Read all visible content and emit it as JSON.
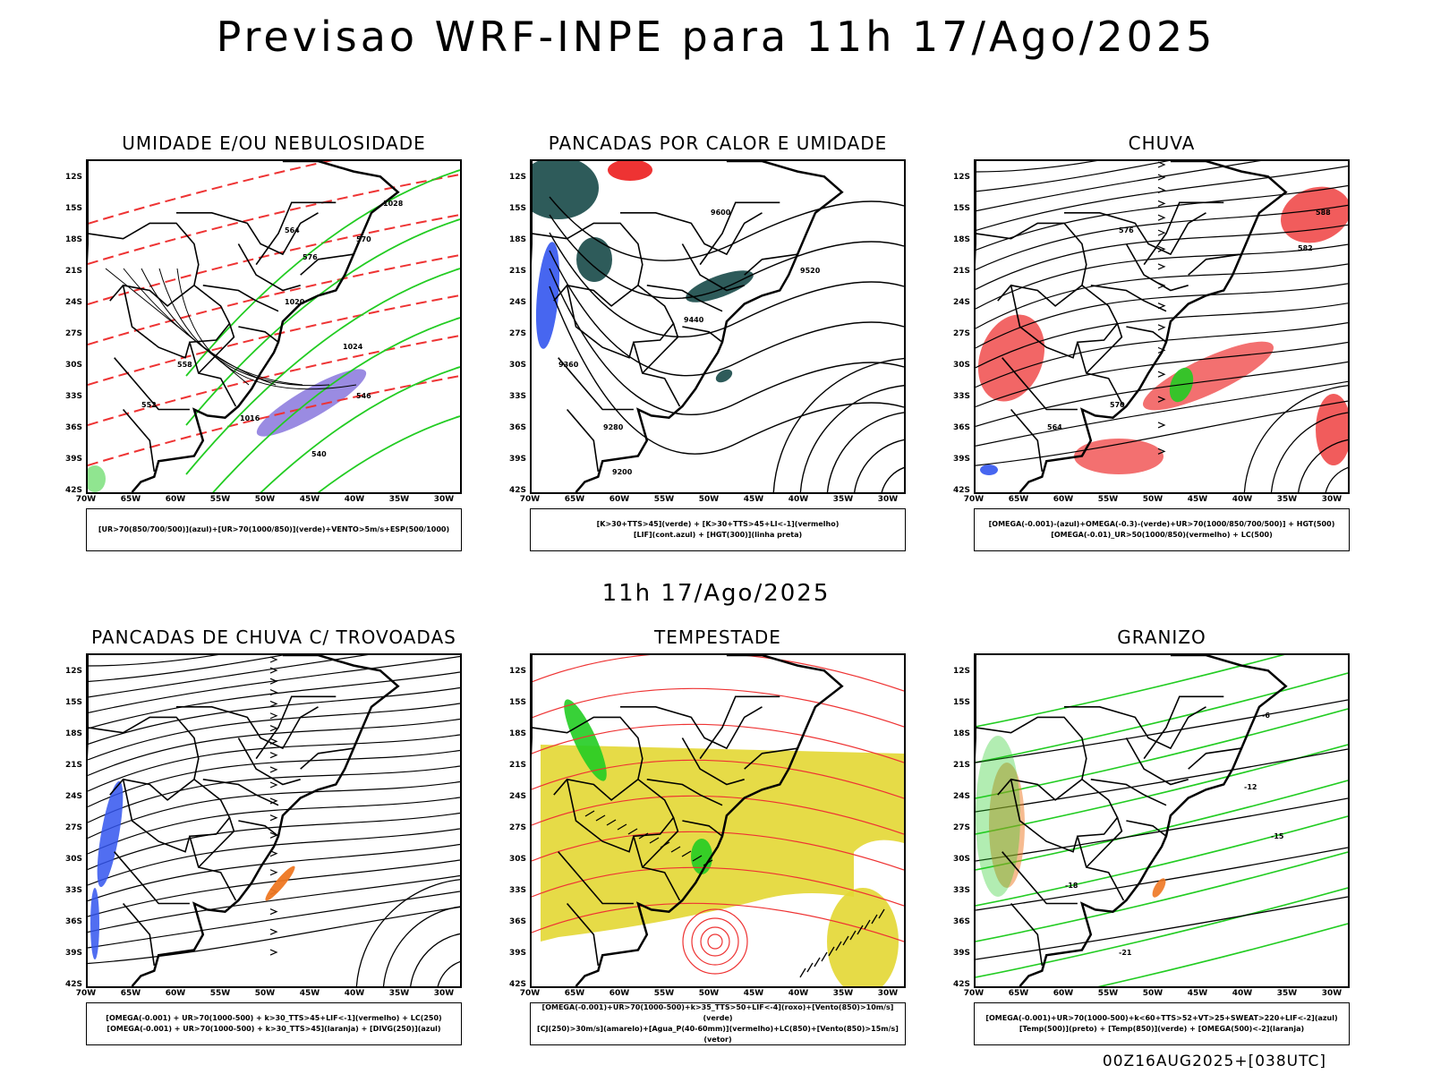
{
  "header": {
    "title": "Previsao WRF-INPE  para 11h 17/Ago/2025"
  },
  "mid_title": "11h 17/Ago/2025",
  "footer": "00Z16AUG2025+[038UTC]",
  "axes": {
    "lat_labels": [
      "12S",
      "15S",
      "18S",
      "21S",
      "24S",
      "27S",
      "30S",
      "33S",
      "36S",
      "39S",
      "42S"
    ],
    "lon_labels": [
      "70W",
      "65W",
      "60W",
      "55W",
      "50W",
      "45W",
      "40W",
      "35W",
      "30W"
    ]
  },
  "panels": [
    {
      "title": "UMIDADE E/OU NEBULOSIDADE",
      "legend": [
        "[UR>70(850/700/500)](azul)+[UR>70(1000/850)](verde)+VENTO>5m/s+ESP(500/1000)"
      ],
      "contour_labels": [
        "1016",
        "1020",
        "1024",
        "1028",
        "564",
        "570",
        "576",
        "558",
        "552",
        "546",
        "540"
      ]
    },
    {
      "title": "PANCADAS POR CALOR E UMIDADE",
      "legend": [
        "[K>30+TTS>45](verde) + [K>30+TTS>45+LI<-1](vermelho)",
        "[LIF](cont.azul) + [HGT(300)](linha preta)"
      ],
      "contour_labels": [
        "9600",
        "9520",
        "9440",
        "9360",
        "9280",
        "9200"
      ]
    },
    {
      "title": "CHUVA",
      "legend": [
        "[OMEGA(-0.001)-(azul)+OMEGA(-0.3)-(verde)+UR>70(1000/850/700/500)] + HGT(500)",
        "[OMEGA(-0.01)_UR>50(1000/850)(vermelho) + LC(500)"
      ],
      "contour_labels": [
        "588",
        "582",
        "576",
        "570",
        "564"
      ]
    },
    {
      "title": "PANCADAS DE CHUVA C/ TROVOADAS",
      "legend": [
        "[OMEGA(-0.001) + UR>70(1000-500) + k>30_TTS>45+LIF<-1](vermelho) + LC(250)",
        "[OMEGA(-0.001) + UR>70(1000-500) + k>30_TTS>45](laranja) + [DIVG(250)](azul)"
      ],
      "contour_labels": []
    },
    {
      "title": "TEMPESTADE",
      "legend": [
        "[OMEGA(-0.001)+UR>70(1000-500)+k>35_TTS>50+LIF<-4](roxo)+[Vento(850)>10m/s](verde)",
        "[CJ(250)>30m/s](amarelo)+[Agua_P(40-60mm)](vermelho)+LC(850)+[Vento(850)>15m/s](vetor)"
      ],
      "contour_labels": []
    },
    {
      "title": "GRANIZO",
      "legend": [
        "[OMEGA(-0.001)+UR>70(1000-500)+k<60+TTS>52+VT>25+SWEAT>220+LIF<-2](azul)",
        "[Temp(500)](preto) + [Temp(850)](verde) + [OMEGA(500)<-2](laranja)"
      ],
      "contour_labels": [
        "-6",
        "-12",
        "-15",
        "-18",
        "-21"
      ]
    }
  ],
  "colors": {
    "coast": "#000000",
    "streamline": "#000000",
    "green": "#22cc22",
    "red": "#ee3333",
    "blue": "#3355ee",
    "purple": "#8877dd",
    "yellow": "#e3d733",
    "teal": "#2e5b5a",
    "orange": "#ee7722"
  }
}
